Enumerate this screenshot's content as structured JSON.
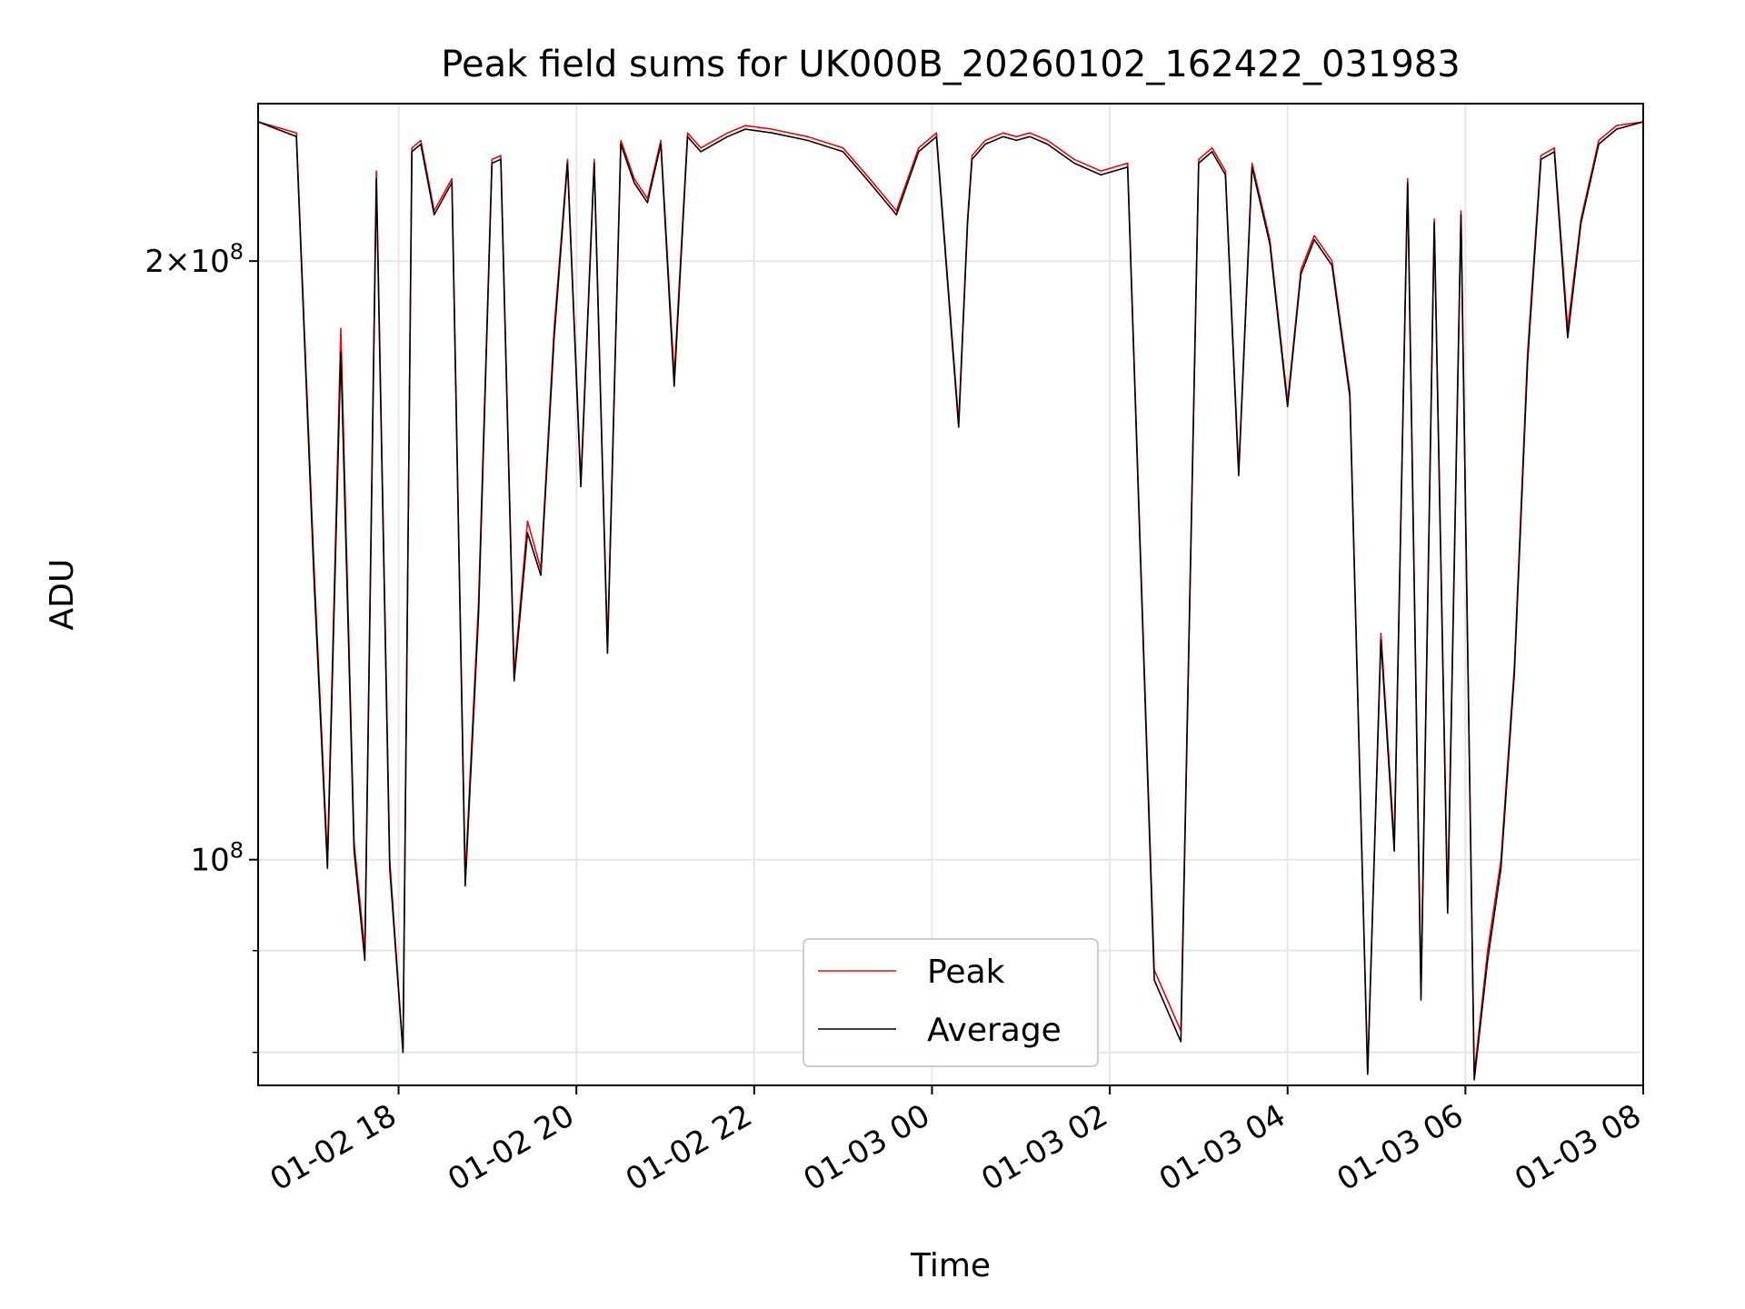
{
  "chart_data": {
    "type": "line",
    "title": "Peak field sums for UK000B_20260102_162422_031983",
    "xlabel": "Time",
    "ylabel": "ADU",
    "x_ticks": [
      "01-02 18",
      "01-02 20",
      "01-02 22",
      "01-03 00",
      "01-03 02",
      "01-03 04",
      "01-03 06",
      "01-03 08"
    ],
    "y_ticks": [
      {
        "value": 100000000,
        "base": "10",
        "exp": "8",
        "prefix": ""
      },
      {
        "value": 200000000,
        "base": "10",
        "exp": "8",
        "prefix": "2×"
      }
    ],
    "y_minor_ticks": [
      80000000,
      90000000
    ],
    "y_scale": "log",
    "xlim_hours": [
      16.42,
      32.0
    ],
    "ylim": [
      77000000,
      240000000
    ],
    "grid": true,
    "legend": {
      "placement": "lower center",
      "entries": [
        "Peak",
        "Average"
      ]
    },
    "series": [
      {
        "name": "Peak",
        "color": "#ff0000",
        "x_hours": [
          16.42,
          16.85,
          17.05,
          17.2,
          17.35,
          17.5,
          17.62,
          17.75,
          17.9,
          18.05,
          18.15,
          18.25,
          18.4,
          18.6,
          18.75,
          18.9,
          19.05,
          19.15,
          19.3,
          19.45,
          19.6,
          19.75,
          19.9,
          20.05,
          20.2,
          20.35,
          20.5,
          20.65,
          20.8,
          20.95,
          21.1,
          21.25,
          21.4,
          21.55,
          21.7,
          21.9,
          22.2,
          22.6,
          23.0,
          23.3,
          23.6,
          23.85,
          24.05,
          24.3,
          24.4,
          24.45,
          24.6,
          24.8,
          24.95,
          25.1,
          25.3,
          25.6,
          25.9,
          26.2,
          26.5,
          26.8,
          27.0,
          27.15,
          27.3,
          27.45,
          27.6,
          27.8,
          28.0,
          28.15,
          28.3,
          28.5,
          28.7,
          28.9,
          29.05,
          29.2,
          29.35,
          29.5,
          29.65,
          29.8,
          29.95,
          30.1,
          30.25,
          30.4,
          30.55,
          30.7,
          30.85,
          31.0,
          31.15,
          31.3,
          31.5,
          31.7,
          32.0
        ],
        "y": [
          235000000,
          232000000,
          140000000,
          100000000,
          185000000,
          102000000,
          90000000,
          222000000,
          100000000,
          80000000,
          228000000,
          230000000,
          212000000,
          220000000,
          98000000,
          135000000,
          225000000,
          226000000,
          124000000,
          148000000,
          140000000,
          185000000,
          225000000,
          155000000,
          225000000,
          128000000,
          230000000,
          220000000,
          215000000,
          230000000,
          175000000,
          232000000,
          228000000,
          230000000,
          232000000,
          234000000,
          233000000,
          231000000,
          228000000,
          220000000,
          212000000,
          228000000,
          232000000,
          166000000,
          210000000,
          226000000,
          230000000,
          232000000,
          231000000,
          232000000,
          230000000,
          225000000,
          222000000,
          224000000,
          88000000,
          82000000,
          225000000,
          228000000,
          222000000,
          157000000,
          224000000,
          205000000,
          170000000,
          198000000,
          206000000,
          200000000,
          172000000,
          78000000,
          130000000,
          102000000,
          220000000,
          86000000,
          210000000,
          95000000,
          212000000,
          78000000,
          90000000,
          100000000,
          125000000,
          180000000,
          226000000,
          228000000,
          185000000,
          210000000,
          230000000,
          234000000,
          235000000
        ]
      },
      {
        "name": "Average",
        "color": "#000000",
        "x_hours": [
          16.42,
          16.85,
          17.05,
          17.2,
          17.35,
          17.5,
          17.62,
          17.75,
          17.9,
          18.05,
          18.15,
          18.25,
          18.4,
          18.6,
          18.75,
          18.9,
          19.05,
          19.15,
          19.3,
          19.45,
          19.6,
          19.75,
          19.9,
          20.05,
          20.2,
          20.35,
          20.5,
          20.65,
          20.8,
          20.95,
          21.1,
          21.25,
          21.4,
          21.55,
          21.7,
          21.9,
          22.2,
          22.6,
          23.0,
          23.3,
          23.6,
          23.85,
          24.05,
          24.3,
          24.4,
          24.45,
          24.6,
          24.8,
          24.95,
          25.1,
          25.3,
          25.6,
          25.9,
          26.2,
          26.5,
          26.8,
          27.0,
          27.15,
          27.3,
          27.45,
          27.6,
          27.8,
          28.0,
          28.15,
          28.3,
          28.5,
          28.7,
          28.9,
          29.05,
          29.2,
          29.35,
          29.5,
          29.65,
          29.8,
          29.95,
          30.1,
          30.25,
          30.4,
          30.55,
          30.7,
          30.85,
          31.0,
          31.15,
          31.3,
          31.5,
          31.7,
          32.0
        ],
        "y": [
          235000000,
          231000000,
          138000000,
          99000000,
          180000000,
          101000000,
          89000000,
          220000000,
          99000000,
          80000000,
          227000000,
          229000000,
          211000000,
          219000000,
          97000000,
          133000000,
          224000000,
          225000000,
          123000000,
          146000000,
          139000000,
          183000000,
          224000000,
          154000000,
          224000000,
          127000000,
          229000000,
          219000000,
          214000000,
          229000000,
          173000000,
          231000000,
          227000000,
          229000000,
          231000000,
          233000000,
          232000000,
          230000000,
          227000000,
          219000000,
          211000000,
          227000000,
          231000000,
          165000000,
          209000000,
          225000000,
          229000000,
          231000000,
          230000000,
          231000000,
          229000000,
          224000000,
          221000000,
          223000000,
          87000000,
          81000000,
          224000000,
          227000000,
          221000000,
          156000000,
          223000000,
          204000000,
          169000000,
          197000000,
          205000000,
          199000000,
          171000000,
          78000000,
          129000000,
          101000000,
          219000000,
          85000000,
          209000000,
          94000000,
          211000000,
          77500000,
          89000000,
          99000000,
          124000000,
          178000000,
          225000000,
          227000000,
          183000000,
          209000000,
          229000000,
          233000000,
          235000000
        ]
      }
    ]
  }
}
